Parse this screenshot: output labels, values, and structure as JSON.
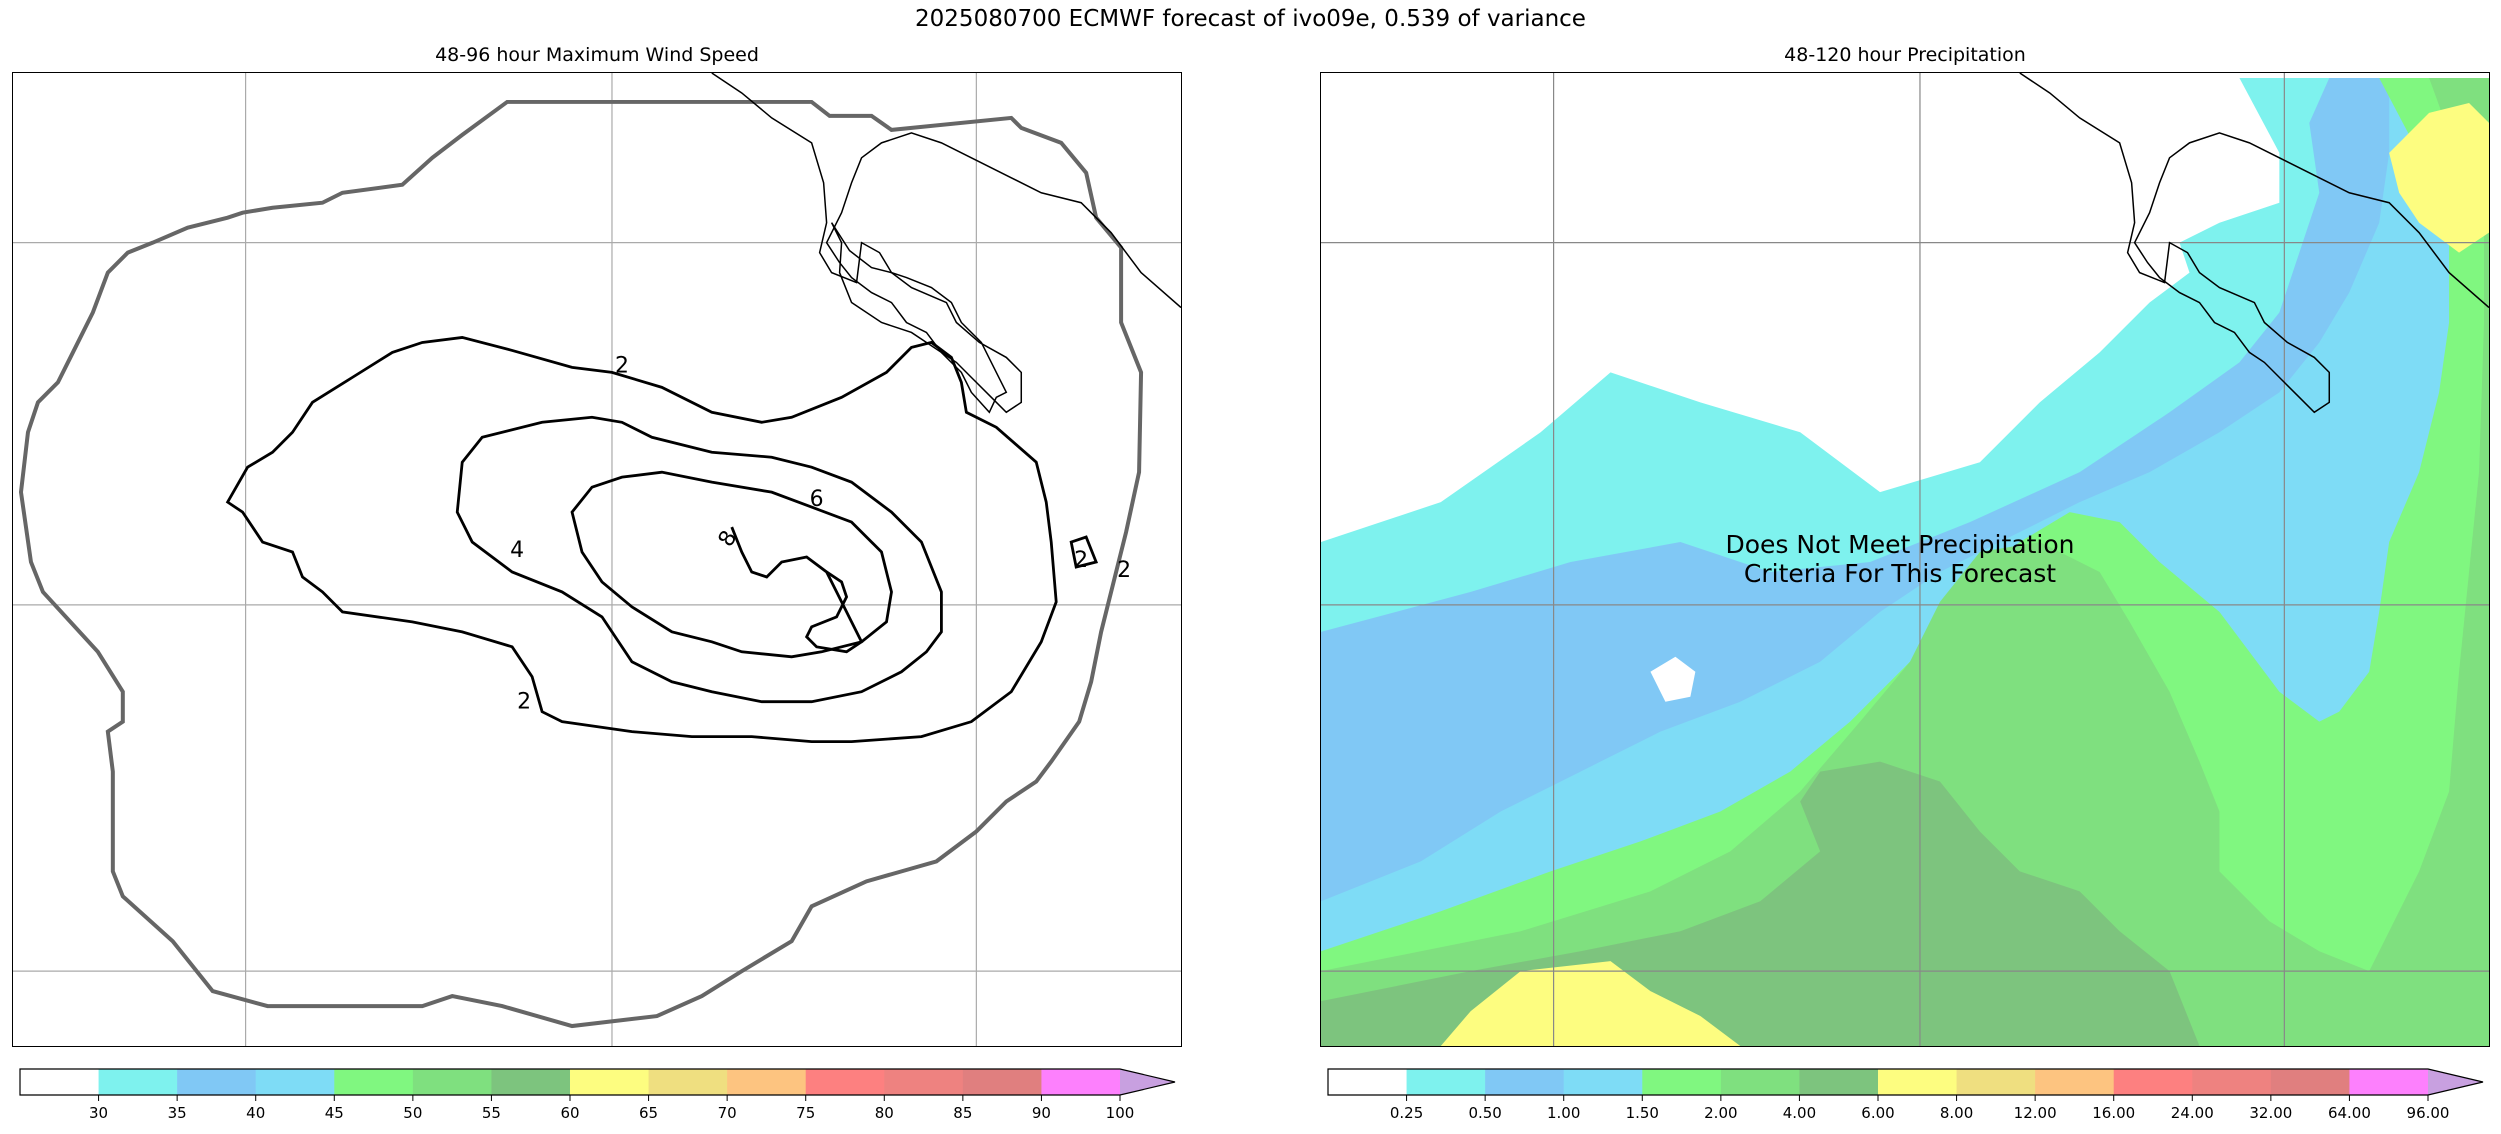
{
  "title": "2025080700 ECMWF forecast of ivo09e, 0.539 of variance",
  "left_panel": {
    "title": "48-96 hour Maximum Wind Speed",
    "contour_labels": [
      "2",
      "4",
      "6",
      "8",
      "2",
      "2",
      "2"
    ],
    "colorbar": {
      "ticks": [
        "30",
        "35",
        "40",
        "45",
        "50",
        "55",
        "60",
        "65",
        "70",
        "75",
        "80",
        "85",
        "90",
        "100"
      ],
      "colors": [
        "#ffffff",
        "#7ef2ee",
        "#80c8f5",
        "#7edcf6",
        "#80f780",
        "#7fe07f",
        "#7dc47e",
        "#fdfd80",
        "#efdf80",
        "#fdc480",
        "#fd8080",
        "#ee8280",
        "#e07f7f",
        "#fd80fd",
        "#c8a0e0"
      ]
    }
  },
  "right_panel": {
    "title": "48-120 hour Precipitation",
    "overlay_text_line1": "Does Not Meet Precipitation",
    "overlay_text_line2": "Criteria For This Forecast",
    "colorbar": {
      "ticks": [
        "0.25",
        "0.50",
        "1.00",
        "1.50",
        "2.00",
        "4.00",
        "6.00",
        "8.00",
        "12.00",
        "16.00",
        "24.00",
        "32.00",
        "64.00",
        "96.00"
      ],
      "colors": [
        "#ffffff",
        "#7ef2ee",
        "#80c8f5",
        "#7edcf6",
        "#80f780",
        "#7fe07f",
        "#7dc47e",
        "#fdfd80",
        "#efdf80",
        "#fdc480",
        "#fd8080",
        "#ee8280",
        "#e07f7f",
        "#fd80fd",
        "#c8a0e0"
      ]
    }
  }
}
